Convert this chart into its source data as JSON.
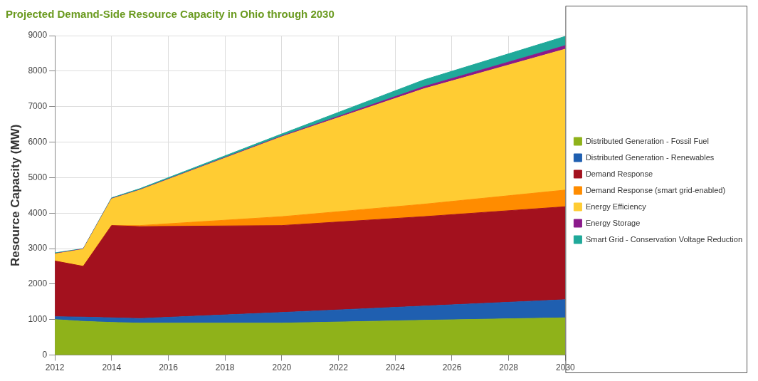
{
  "chart_data": {
    "type": "area",
    "title": "Projected Demand-Side Resource Capacity in Ohio through 2030",
    "ylabel": "Resource Capacity (MW)",
    "stacked": true,
    "grid": true,
    "legend": "right",
    "x": [
      2012,
      2013,
      2014,
      2015,
      2020,
      2025,
      2030
    ],
    "xlim": [
      2012,
      2030
    ],
    "xticks": [
      2012,
      2014,
      2016,
      2018,
      2020,
      2022,
      2024,
      2026,
      2028,
      2030
    ],
    "ylim": [
      0,
      9000
    ],
    "yticks": [
      0,
      1000,
      2000,
      3000,
      4000,
      5000,
      6000,
      7000,
      8000,
      9000
    ],
    "series": [
      {
        "name": "Distributed Generation - Fossil Fuel",
        "color": "#8fb21a",
        "values": [
          1000,
          950,
          920,
          900,
          900,
          980,
          1050
        ]
      },
      {
        "name": "Distributed Generation - Renewables",
        "color": "#1f5fb0",
        "values": [
          80,
          120,
          130,
          130,
          300,
          400,
          510
        ]
      },
      {
        "name": "Demand Response",
        "color": "#a3111e",
        "values": [
          1570,
          1430,
          2600,
          2590,
          2450,
          2520,
          2620
        ]
      },
      {
        "name": "Demand Response (smart grid-enabled)",
        "color": "#ff8c00",
        "values": [
          0,
          0,
          0,
          30,
          250,
          350,
          470
        ]
      },
      {
        "name": "Energy Efficiency",
        "color": "#ffcc33",
        "values": [
          200,
          480,
          750,
          1000,
          2250,
          3250,
          3970
        ]
      },
      {
        "name": "Energy Storage",
        "color": "#8b1a8b",
        "values": [
          10,
          10,
          10,
          10,
          20,
          60,
          100
        ]
      },
      {
        "name": "Smart Grid - Conservation Voltage Reduction",
        "color": "#20a99a",
        "values": [
          20,
          10,
          20,
          30,
          60,
          190,
          260
        ]
      }
    ]
  }
}
